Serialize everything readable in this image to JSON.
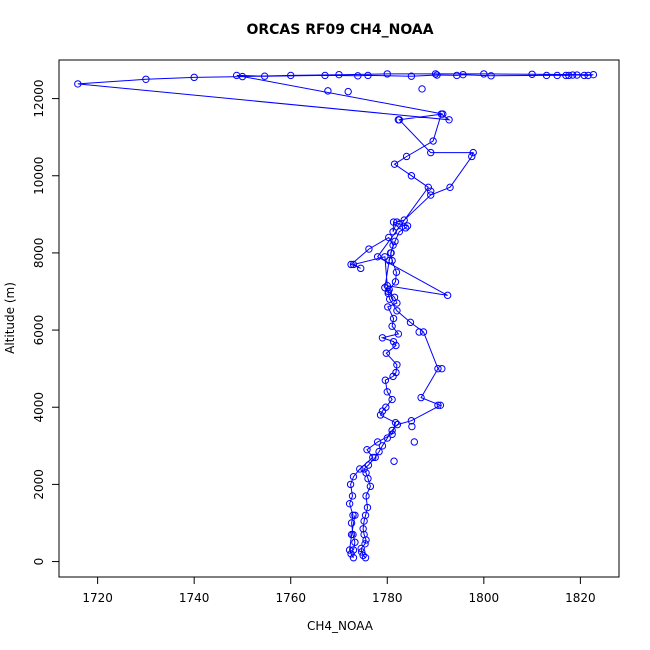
{
  "chart_data": {
    "type": "line",
    "title": "ORCAS RF09 CH4_NOAA",
    "xlabel": "CH4_NOAA",
    "ylabel": "Altitude (m)",
    "xlim": [
      1712,
      1828
    ],
    "ylim": [
      -400,
      13000
    ],
    "xticks": [
      1720,
      1740,
      1760,
      1780,
      1800,
      1820
    ],
    "yticks": [
      0,
      2000,
      4000,
      6000,
      8000,
      10000,
      12000
    ],
    "grid": false,
    "marker": "open-circle",
    "color": "#0000ff",
    "series": [
      {
        "x": [
          1775.5,
          1775.0,
          1774.7,
          1774.6,
          1775.4,
          1775.6,
          1775.2,
          1775.0,
          1775.2,
          1775.5,
          1775.9,
          1775.6,
          1776.5,
          1776.0,
          1775.6,
          1775.2,
          1776.1,
          1777.5,
          1778.3,
          1779.0,
          1780.0,
          1781.0,
          1782.1,
          1785.0,
          1791.0,
          1787.0,
          1790.5,
          1787.5,
          1784.8,
          1782.0,
          1780.5,
          1780.2,
          1780.4,
          1781.7,
          1781.9,
          1781.0,
          1780.7,
          1781.6,
          1782.5,
          1783.8,
          1784.2,
          1782.5,
          1781.3,
          1781.2,
          1782.0,
          1783.5,
          1789.0,
          1793.0,
          1797.5,
          1797.8,
          1789.0,
          1782.5,
          1791.5,
          1748.8,
          1754.6,
          1767.1,
          1773.9,
          1776.0,
          1785.0,
          1790.3,
          1794.4,
          1795.7,
          1801.5,
          1813.0,
          1815.2,
          1817.0,
          1817.6,
          1818.4,
          1819.3,
          1820.8,
          1821.6,
          1822.7,
          1810.0,
          1800.0,
          1790.0,
          1780.0,
          1770.0,
          1760.0,
          1750.0,
          1740.0,
          1730.0,
          1715.9,
          1792.8,
          1791.2,
          1789.5,
          1784.0,
          1781.5,
          1785.0,
          1788.5,
          1778.0,
          1792.5,
          1780.0,
          1779.5,
          1773.0,
          1774.5,
          1772.5,
          1776.2,
          1780.3,
          1781.2,
          1780.8,
          1780.4,
          1779.5,
          1780.2,
          1781.5,
          1782.0,
          1780.1,
          1781.3,
          1781.0,
          1782.3,
          1779.0,
          1781.3,
          1781.8,
          1779.8,
          1782.0,
          1781.8,
          1781.2,
          1779.6,
          1780.0,
          1781.0,
          1779.7,
          1779.0,
          1778.6,
          1781.7,
          1781.0,
          1778.0,
          1775.8,
          1777.0,
          1774.3,
          1773.0,
          1772.4,
          1772.8,
          1772.2,
          1772.9,
          1772.6,
          1772.9,
          1773.3,
          1773.0
        ],
        "y": [
          100,
          160,
          250,
          340,
          460,
          560,
          700,
          850,
          1050,
          1200,
          1400,
          1700,
          1950,
          2150,
          2300,
          2400,
          2500,
          2700,
          2850,
          3000,
          3200,
          3400,
          3550,
          3650,
          4050,
          4250,
          5000,
          5950,
          6200,
          6500,
          6800,
          6950,
          7050,
          7250,
          7500,
          7800,
          8000,
          8300,
          8550,
          8650,
          8700,
          8750,
          8800,
          8550,
          8800,
          8850,
          9500,
          9700,
          10500,
          10600,
          10600,
          11450,
          11600,
          12600,
          12580,
          12600,
          12590,
          12600,
          12580,
          12610,
          12600,
          12620,
          12590,
          12600,
          12600,
          12600,
          12600,
          12610,
          12610,
          12600,
          12600,
          12620,
          12630,
          12640,
          12640,
          12640,
          12620,
          12600,
          12570,
          12550,
          12500,
          12380,
          11450,
          11600,
          10900,
          10500,
          10300,
          10000,
          9700,
          7900,
          6900,
          7150,
          7900,
          7700,
          7600,
          7700,
          8100,
          8400,
          8200,
          8000,
          7800,
          7100,
          7000,
          6850,
          6700,
          6600,
          6300,
          6100,
          5900,
          5800,
          5700,
          5600,
          5400,
          5100,
          4900,
          4800,
          4700,
          4400,
          4200,
          4000,
          3900,
          3800,
          3600,
          3300,
          3100,
          2900,
          2700,
          2400,
          2200,
          2000,
          1700,
          1500,
          1200,
          1000,
          700,
          500,
          300
        ]
      },
      {
        "x": [
          1773.0,
          1772.5,
          1772.2,
          1772.6,
          1773.3
        ],
        "y": [
          100,
          200,
          300,
          700,
          1200
        ]
      }
    ],
    "extra_points": [
      {
        "x": 1767.7,
        "y": 12200
      },
      {
        "x": 1771.9,
        "y": 12180
      },
      {
        "x": 1787.2,
        "y": 12250
      },
      {
        "x": 1782.3,
        "y": 11450
      },
      {
        "x": 1789.0,
        "y": 9600
      },
      {
        "x": 1786.6,
        "y": 5950
      },
      {
        "x": 1791.3,
        "y": 5000
      },
      {
        "x": 1790.5,
        "y": 4050
      },
      {
        "x": 1785.1,
        "y": 3500
      },
      {
        "x": 1785.6,
        "y": 3100
      },
      {
        "x": 1781.4,
        "y": 2600
      }
    ]
  }
}
